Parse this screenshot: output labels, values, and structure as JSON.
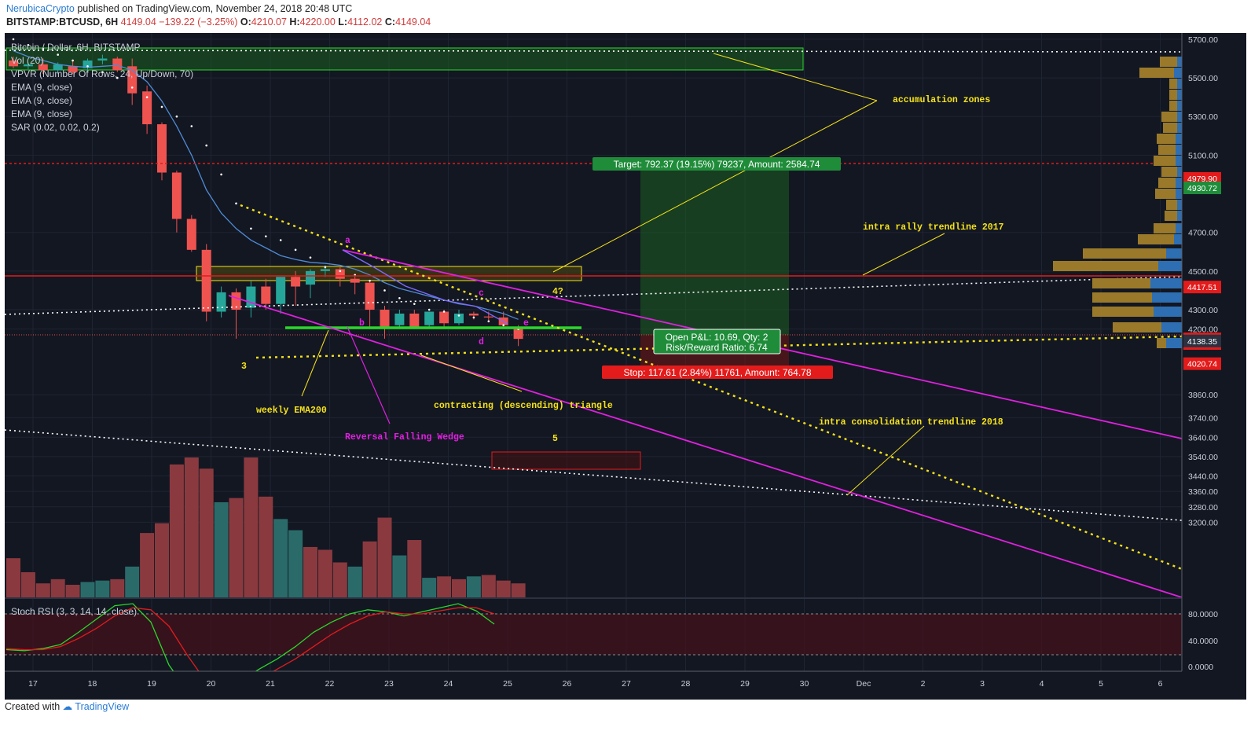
{
  "header": {
    "author": "NerubicaCrypto",
    "published": "published on TradingView.com, November 24, 2018 20:48 UTC",
    "symbol": "BITSTAMP:BTCUSD, 6H",
    "last": "4149.04",
    "change": "−139.22 (−3.25%)",
    "open_label": "O:",
    "open": "4210.07",
    "high_label": "H:",
    "high": "4220.00",
    "low_label": "L:",
    "low": "4112.02",
    "close_label": "C:",
    "close": "4149.04"
  },
  "legend": {
    "title": "Bitcoin / Dollar, 6H, BITSTAMP",
    "lines": [
      "Vol (20)",
      "VPVR (Number Of Rows, 24, Up/Down, 70)",
      "EMA (9, close)",
      "EMA (9, close)",
      "EMA (9, close)",
      "SAR (0.02, 0.02, 0.2)"
    ]
  },
  "stoch_label": "Stoch RSI (3, 3, 14, 14, close)",
  "footer": {
    "created_with": "Created with",
    "brand": "TradingView"
  },
  "colors": {
    "bg": "#131722",
    "up": "#26a69a",
    "down": "#ef5350",
    "yellow": "#f5e21a",
    "magenta": "#e020e0",
    "green": "#2bd62b"
  },
  "chart_data": {
    "type": "candlestick",
    "title": "Bitcoin / Dollar, 6H, BITSTAMP",
    "x_ticks": [
      "17",
      "18",
      "19",
      "20",
      "21",
      "22",
      "23",
      "24",
      "25",
      "26",
      "27",
      "28",
      "29",
      "30",
      "Dec",
      "2",
      "3",
      "4",
      "5",
      "6"
    ],
    "y_ticks": [
      5700,
      5500,
      5300,
      5100,
      4700,
      4500,
      4300,
      4200,
      3860,
      3740,
      3640,
      3540,
      3440,
      3360,
      3280,
      3200
    ],
    "y_range": [
      3160,
      5720
    ],
    "candles": [
      [
        5590,
        5610,
        5550,
        5560
      ],
      [
        5560,
        5580,
        5545,
        5570
      ],
      [
        5570,
        5600,
        5520,
        5540
      ],
      [
        5540,
        5580,
        5520,
        5570
      ],
      [
        5560,
        5590,
        5520,
        5530
      ],
      [
        5550,
        5600,
        5530,
        5590
      ],
      [
        5590,
        5620,
        5570,
        5600
      ],
      [
        5600,
        5610,
        5530,
        5540
      ],
      [
        5560,
        5600,
        5360,
        5420
      ],
      [
        5430,
        5460,
        5210,
        5260
      ],
      [
        5260,
        5270,
        4970,
        5010
      ],
      [
        5010,
        5020,
        4700,
        4770
      ],
      [
        4770,
        4790,
        4600,
        4610
      ],
      [
        4610,
        4640,
        4240,
        4290
      ],
      [
        4290,
        4420,
        4260,
        4390
      ],
      [
        4390,
        4410,
        4150,
        4300
      ],
      [
        4310,
        4450,
        4260,
        4420
      ],
      [
        4420,
        4460,
        4300,
        4330
      ],
      [
        4330,
        4470,
        4280,
        4470
      ],
      [
        4470,
        4500,
        4320,
        4420
      ],
      [
        4430,
        4510,
        4360,
        4500
      ],
      [
        4500,
        4530,
        4470,
        4510
      ],
      [
        4510,
        4520,
        4420,
        4460
      ],
      [
        4460,
        4480,
        4380,
        4440
      ],
      [
        4440,
        4450,
        4200,
        4300
      ],
      [
        4300,
        4320,
        4150,
        4210
      ],
      [
        4220,
        4300,
        4200,
        4280
      ],
      [
        4280,
        4300,
        4200,
        4210
      ],
      [
        4220,
        4290,
        4210,
        4290
      ],
      [
        4290,
        4300,
        4200,
        4230
      ],
      [
        4230,
        4300,
        4220,
        4280
      ],
      [
        4280,
        4290,
        4250,
        4270
      ],
      [
        4265,
        4290,
        4240,
        4260
      ],
      [
        4260,
        4290,
        4210,
        4220
      ],
      [
        4210.07,
        4220.0,
        4112.02,
        4149.04
      ]
    ],
    "volume": [
      {
        "dir": "down",
        "v": 0.28
      },
      {
        "dir": "down",
        "v": 0.18
      },
      {
        "dir": "down",
        "v": 0.1
      },
      {
        "dir": "down",
        "v": 0.13
      },
      {
        "dir": "down",
        "v": 0.09
      },
      {
        "dir": "up",
        "v": 0.11
      },
      {
        "dir": "up",
        "v": 0.12
      },
      {
        "dir": "down",
        "v": 0.13
      },
      {
        "dir": "up",
        "v": 0.22
      },
      {
        "dir": "down",
        "v": 0.46
      },
      {
        "dir": "down",
        "v": 0.53
      },
      {
        "dir": "down",
        "v": 0.95
      },
      {
        "dir": "down",
        "v": 1.0
      },
      {
        "dir": "down",
        "v": 0.92
      },
      {
        "dir": "up",
        "v": 0.68
      },
      {
        "dir": "down",
        "v": 0.71
      },
      {
        "dir": "down",
        "v": 1.0
      },
      {
        "dir": "down",
        "v": 0.72
      },
      {
        "dir": "up",
        "v": 0.56
      },
      {
        "dir": "up",
        "v": 0.48
      },
      {
        "dir": "down",
        "v": 0.36
      },
      {
        "dir": "down",
        "v": 0.34
      },
      {
        "dir": "down",
        "v": 0.25
      },
      {
        "dir": "up",
        "v": 0.22
      },
      {
        "dir": "down",
        "v": 0.4
      },
      {
        "dir": "down",
        "v": 0.57
      },
      {
        "dir": "up",
        "v": 0.3
      },
      {
        "dir": "down",
        "v": 0.41
      },
      {
        "dir": "up",
        "v": 0.14
      },
      {
        "dir": "down",
        "v": 0.15
      },
      {
        "dir": "down",
        "v": 0.13
      },
      {
        "dir": "up",
        "v": 0.15
      },
      {
        "dir": "down",
        "v": 0.16
      },
      {
        "dir": "down",
        "v": 0.12
      },
      {
        "dir": "down",
        "v": 0.1
      }
    ],
    "ema": [
      5640,
      5610,
      5590,
      5570,
      5560,
      5555,
      5560,
      5565,
      5540,
      5480,
      5380,
      5250,
      5100,
      4920,
      4800,
      4720,
      4660,
      4620,
      4580,
      4560,
      4545,
      4540,
      4530,
      4510,
      4480,
      4440,
      4410,
      4390,
      4370,
      4350,
      4330,
      4320,
      4300,
      4280,
      4250
    ],
    "sar": [
      5700,
      5670,
      5650,
      5620,
      5590,
      5560,
      5530,
      5500,
      5450,
      5400,
      5350,
      5300,
      5250,
      5150,
      5000,
      4850,
      4720,
      4680,
      4660,
      4610,
      4570,
      4520,
      4500,
      4480,
      4450,
      4400,
      4360,
      4330,
      4300,
      4290,
      4270,
      4260,
      4240,
      4220,
      4200
    ],
    "stoch_k": [
      45,
      44,
      46,
      50,
      62,
      75,
      88,
      90,
      72,
      30,
      5,
      0,
      8,
      15,
      26,
      36,
      48,
      62,
      72,
      80,
      84,
      82,
      78,
      82,
      86,
      90,
      83,
      70
    ],
    "stoch_d": [
      46,
      45,
      45,
      48,
      56,
      66,
      78,
      86,
      84,
      68,
      40,
      15,
      5,
      8,
      16,
      26,
      36,
      48,
      60,
      70,
      78,
      82,
      80,
      80,
      83,
      86,
      86,
      80
    ],
    "stoch_ticks": [
      "80.0000",
      "40.0000",
      "0.0000"
    ],
    "price_tags": [
      {
        "label": "4979.90",
        "value": 4979.9,
        "color": "#e31b1b"
      },
      {
        "label": "4930.72",
        "value": 4930.72,
        "color": "#1f8c3a"
      },
      {
        "label": "4417.51",
        "value": 4417.51,
        "color": "#e31b1b"
      },
      {
        "label": "4149.04",
        "value": 4149.04,
        "color": "#e31b1b"
      },
      {
        "label": "03:11:03",
        "value": 4125,
        "color": "#e31b1b"
      },
      {
        "label": "4138.35",
        "value": 4138.35,
        "color": "#2b3140"
      },
      {
        "label": "4020.74",
        "value": 4020.74,
        "color": "#e31b1b"
      }
    ],
    "position": {
      "target_label": "Target: 792.37 (19.15%) 79237, Amount: 2584.74",
      "pnl_label": "Open P&L: 10.69, Qty: 2",
      "rr_label": "Risk/Reward Ratio: 6.74",
      "stop_label": "Stop: 117.61 (2.84%) 11761, Amount: 764.78"
    },
    "annotations": {
      "accumulation": "accumulation zones",
      "intra_rally": "intra rally trendline 2017",
      "weekly_ema": "weekly EMA200",
      "triangle": "contracting (descending) triangle",
      "wedge": "Reversal Falling Wedge",
      "intra_consol": "intra consolidation trendline 2018",
      "wave3": "3",
      "wave4": "4?",
      "wave5": "5",
      "pa": "a",
      "pb": "b",
      "pc": "c",
      "pd": "d",
      "pe": "e"
    }
  }
}
